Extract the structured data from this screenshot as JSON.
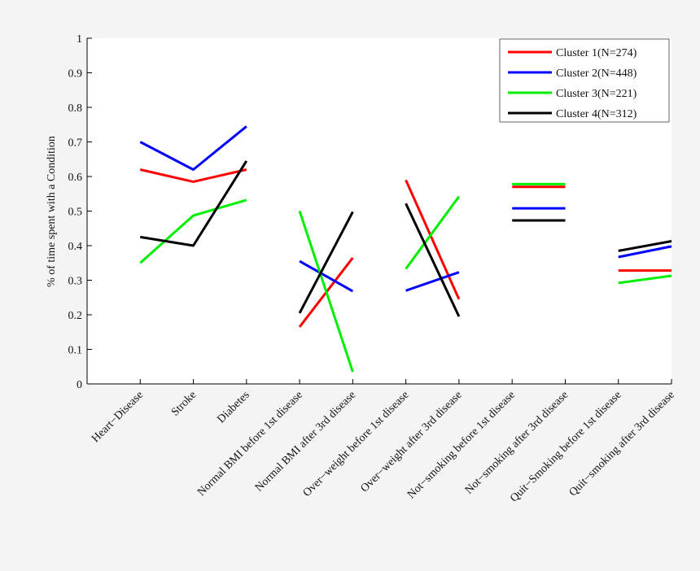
{
  "chart_data": {
    "type": "line",
    "ylabel": "% of time spent with a Condition",
    "xlabel": "",
    "ylim": [
      0,
      1
    ],
    "yticks": [
      "0",
      "0.1",
      "0.2",
      "0.3",
      "0.4",
      "0.5",
      "0.6",
      "0.7",
      "0.8",
      "0.9",
      "1"
    ],
    "categories": [
      "Heart−Disease",
      "Stroke",
      "Diabetes",
      "Normal BMI before 1st disease",
      "Normal BMI after 3rd disease",
      "Over−weight before 1st disease",
      "Over−weight after 3rd disease",
      "Not−smoking before 1st disease",
      "Not−smoking after 3rd disease",
      "Quit−Smoking before 1st disease",
      "Quit−smoking after 3rd disease"
    ],
    "segments": [
      [
        0,
        1,
        2
      ],
      [
        3,
        4
      ],
      [
        5,
        6
      ],
      [
        7,
        8
      ],
      [
        9,
        10
      ]
    ],
    "legend_position": "top-right",
    "series": [
      {
        "name": "Cluster 1(N=274)",
        "color": "#ff0000",
        "values": [
          0.62,
          0.585,
          0.62,
          0.165,
          0.365,
          0.59,
          0.245,
          0.57,
          0.57,
          0.328,
          0.328
        ]
      },
      {
        "name": "Cluster 2(N=448)",
        "color": "#0000ff",
        "values": [
          0.7,
          0.62,
          0.745,
          0.355,
          0.268,
          0.27,
          0.323,
          0.508,
          0.508,
          0.367,
          0.398
        ]
      },
      {
        "name": "Cluster 3(N=221)",
        "color": "#00ee00",
        "values": [
          0.35,
          0.487,
          0.532,
          0.5,
          0.035,
          0.333,
          0.542,
          0.578,
          0.578,
          0.292,
          0.313
        ]
      },
      {
        "name": "Cluster 4(N=312)",
        "color": "#000000",
        "values": [
          0.425,
          0.4,
          0.645,
          0.205,
          0.498,
          0.522,
          0.195,
          0.473,
          0.473,
          0.385,
          0.413
        ]
      }
    ]
  }
}
